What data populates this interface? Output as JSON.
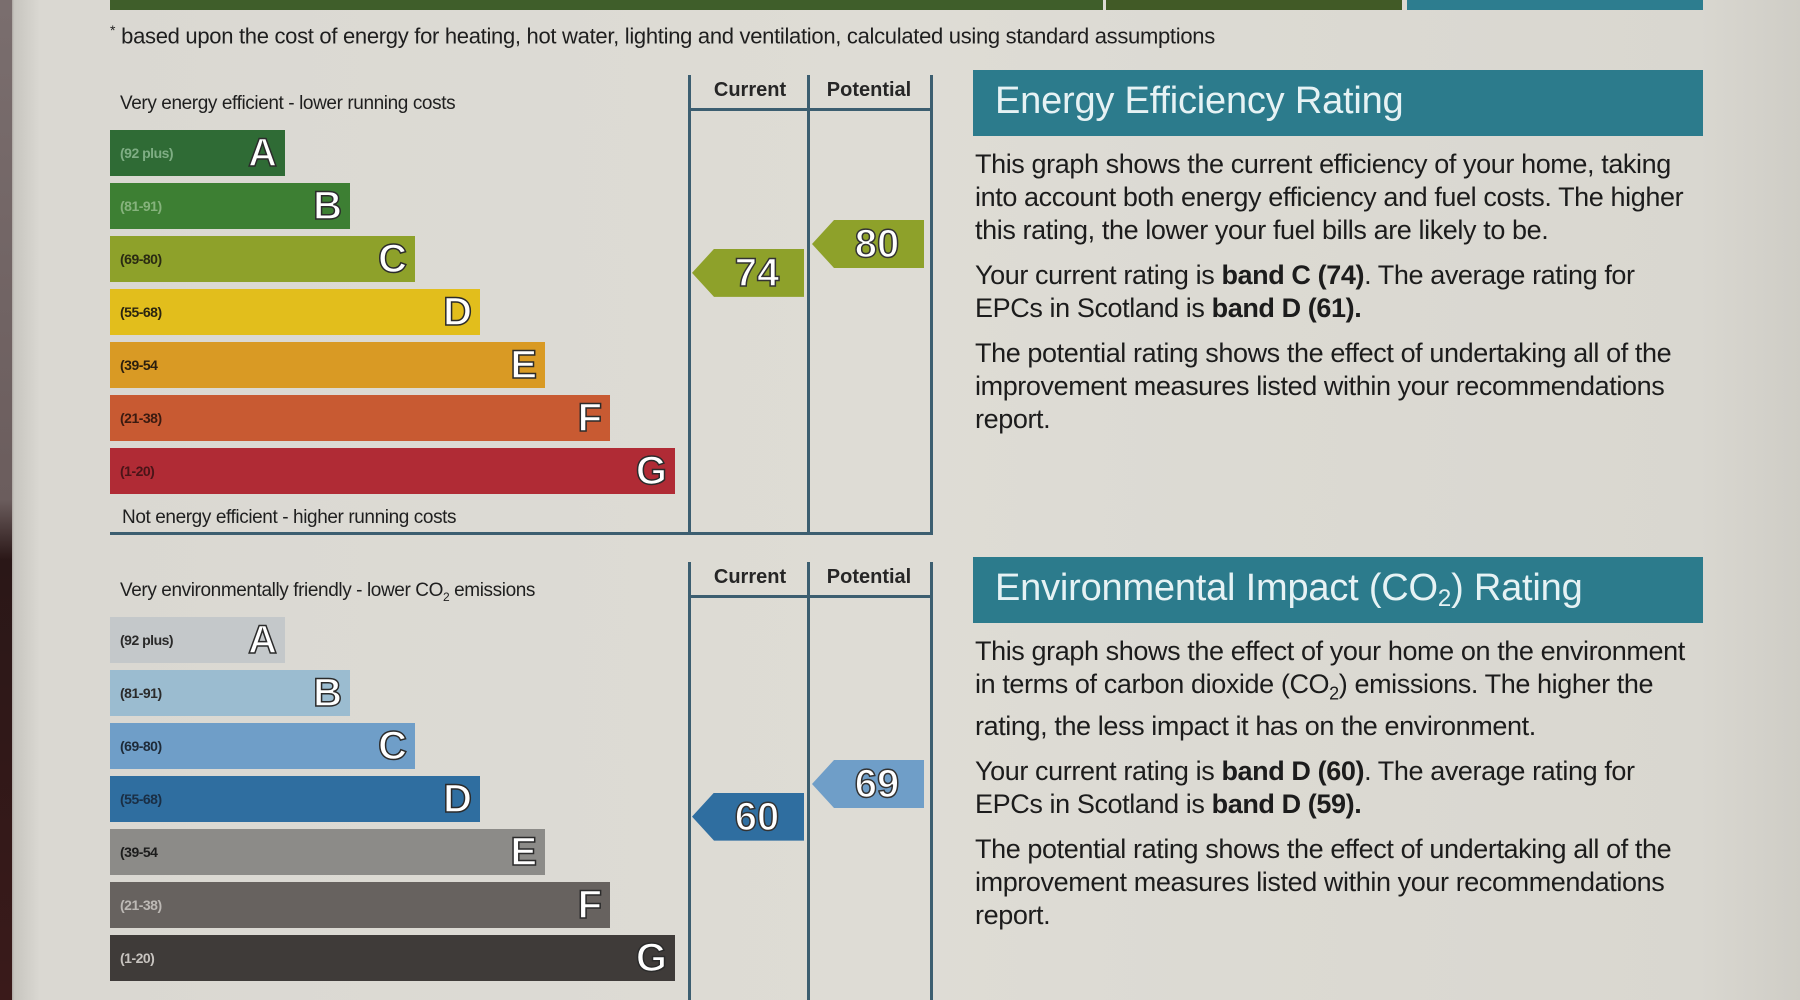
{
  "footnote": {
    "marker": "*",
    "text": "based upon the cost of energy for heating, hot water, lighting and ventilation, calculated using standard assumptions"
  },
  "colors": {
    "header_teal": "#2c7b8c",
    "frame_line": "#3c5e70"
  },
  "energy_chart": {
    "top_label": "Very energy efficient - lower running costs",
    "bottom_label": "Not energy efficient - higher running costs",
    "col_current": "Current",
    "col_potential": "Potential",
    "bands": [
      {
        "range": "(92 plus)",
        "letter": "A",
        "color": "#2f6b35",
        "text_color": "#7fae84"
      },
      {
        "range": "(81-91)",
        "letter": "B",
        "color": "#3d7f33",
        "text_color": "#86b37d"
      },
      {
        "range": "(69-80)",
        "letter": "C",
        "color": "#8ea12a",
        "text_color": "#2a2a12"
      },
      {
        "range": "(55-68)",
        "letter": "D",
        "color": "#e2be1c",
        "text_color": "#2a2410"
      },
      {
        "range": "(39-54",
        "letter": "E",
        "color": "#d99a24",
        "text_color": "#2a1e0e"
      },
      {
        "range": "(21-38)",
        "letter": "F",
        "color": "#c85a32",
        "text_color": "#3a1a10"
      },
      {
        "range": "(1-20)",
        "letter": "G",
        "color": "#b02b35",
        "text_color": "#4a1418"
      }
    ],
    "current": {
      "value": "74",
      "band": "C",
      "color": "#8ea12a"
    },
    "potential": {
      "value": "80",
      "band": "C",
      "color": "#8ea12a"
    }
  },
  "env_chart": {
    "top_label_pre": "Very environmentally friendly - lower CO",
    "top_label_sub": "2",
    "top_label_post": " emissions",
    "col_current": "Current",
    "col_potential": "Potential",
    "bands": [
      {
        "range": "(92 plus)",
        "letter": "A",
        "color": "#c4c8ca",
        "text_color": "#2a2a2a"
      },
      {
        "range": "(81-91)",
        "letter": "B",
        "color": "#9bbcd0",
        "text_color": "#2a2a2a"
      },
      {
        "range": "(69-80)",
        "letter": "C",
        "color": "#6f9ec8",
        "text_color": "#1e2a38"
      },
      {
        "range": "(55-68)",
        "letter": "D",
        "color": "#2f6ea0",
        "text_color": "#1a2e44"
      },
      {
        "range": "(39-54",
        "letter": "E",
        "color": "#8c8b88",
        "text_color": "#1c1c1c"
      },
      {
        "range": "(21-38)",
        "letter": "F",
        "color": "#67625f",
        "text_color": "#bdb9b5"
      },
      {
        "range": "(1-20)",
        "letter": "G",
        "color": "#3f3b39",
        "text_color": "#c8c4c0"
      }
    ],
    "current": {
      "value": "60",
      "band": "D",
      "color": "#2f6ea0"
    },
    "potential": {
      "value": "69",
      "band": "C",
      "color": "#6f9ec8"
    }
  },
  "energy_panel": {
    "title": "Energy Efficiency Rating",
    "para1": "This graph shows the current efficiency of your home, taking into account both energy efficiency and fuel costs. The higher this rating, the lower your fuel bills are likely to be.",
    "para2_pre": "Your current rating is ",
    "para2_bold1": "band C (74)",
    "para2_mid": ". The average rating for EPCs in Scotland is ",
    "para2_bold2": "band D (61).",
    "para3": "The potential rating shows the effect of undertaking all of the improvement measures listed within your recommendations report."
  },
  "env_panel": {
    "title_pre": "Environmental Impact (CO",
    "title_sub": "2",
    "title_post": ") Rating",
    "para1_pre": "This graph shows the effect of your home on the environment in terms of carbon dioxide (CO",
    "para1_sub": "2",
    "para1_post": ") emissions. The higher the rating, the less impact it has on the environment.",
    "para2_pre": "Your current rating is ",
    "para2_bold1": "band D (60)",
    "para2_mid": ". The average rating for EPCs in Scotland is ",
    "para2_bold2": "band D (59).",
    "para3": "The potential rating shows the effect of undertaking all of the improvement measures listed within your recommendations report."
  }
}
